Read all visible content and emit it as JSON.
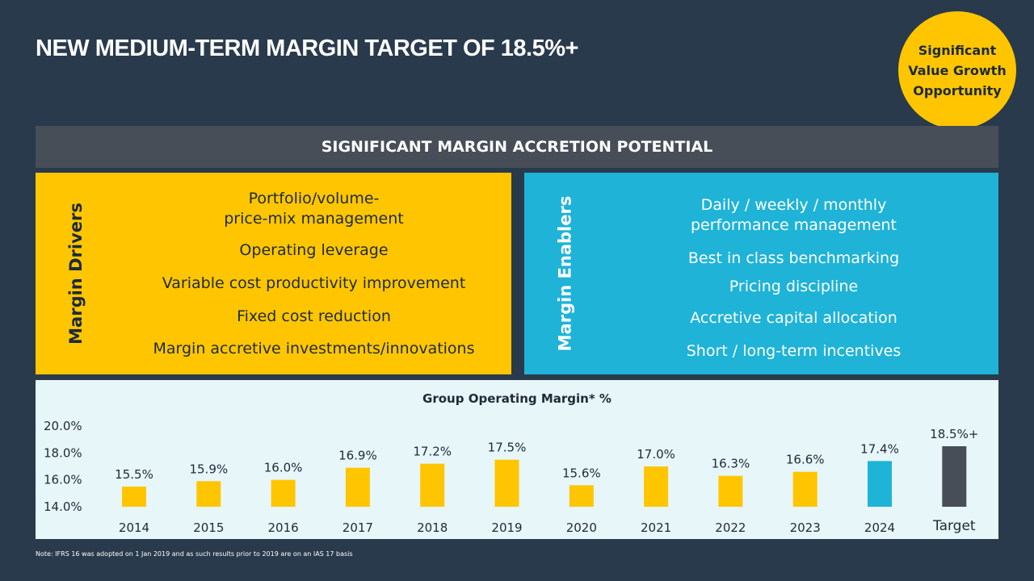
{
  "title": "NEW MEDIUM-TERM MARGIN TARGET OF 18.5%+",
  "badge": {
    "lines": [
      "Significant",
      "Value Growth",
      "Opportunity"
    ],
    "color": "#ffc600"
  },
  "subhead": "SIGNIFICANT MARGIN ACCRETION POTENTIAL",
  "drivers": {
    "label": "Margin Drivers",
    "items": [
      "Portfolio/volume-",
      "price-mix management",
      "Operating leverage",
      "Variable cost productivity improvement",
      "Fixed cost reduction",
      "Margin accretive investments/innovations"
    ]
  },
  "enablers": {
    "label": "Margin Enablers",
    "items": [
      "Daily / weekly / monthly",
      "performance management",
      "Best in class benchmarking",
      "Pricing discipline",
      "Accretive capital allocation",
      "Short / long-term incentives"
    ]
  },
  "chart_data": {
    "type": "bar",
    "title": "Group Operating Margin* %",
    "categories": [
      "2014",
      "2015",
      "2016",
      "2017",
      "2018",
      "2019",
      "2020",
      "2021",
      "2022",
      "2023",
      "2024",
      "Target"
    ],
    "values": [
      15.5,
      15.9,
      16.0,
      16.9,
      17.2,
      17.5,
      15.6,
      17.0,
      16.3,
      16.6,
      17.4,
      18.5
    ],
    "data_labels": [
      "15.5%",
      "15.9%",
      "16.0%",
      "16.9%",
      "17.2%",
      "17.5%",
      "15.6%",
      "17.0%",
      "16.3%",
      "16.6%",
      "17.4%",
      "18.5%+"
    ],
    "bar_colors": [
      "#ffc600",
      "#ffc600",
      "#ffc600",
      "#ffc600",
      "#ffc600",
      "#ffc600",
      "#ffc600",
      "#ffc600",
      "#ffc600",
      "#ffc600",
      "#1fb3d8",
      "#474e58"
    ],
    "ylim": [
      14.0,
      20.0
    ],
    "yticks": [
      20.0,
      18.0,
      16.0,
      14.0
    ],
    "ytick_labels": [
      "20.0%",
      "18.0%",
      "16.0%",
      "14.0%"
    ],
    "xlabel": "",
    "ylabel": "",
    "grid": false,
    "legend": "none"
  },
  "footnote": "Note: IFRS 16 was adopted on 1 Jan 2019 and as such results prior to 2019 are on an IAS 17 basis"
}
